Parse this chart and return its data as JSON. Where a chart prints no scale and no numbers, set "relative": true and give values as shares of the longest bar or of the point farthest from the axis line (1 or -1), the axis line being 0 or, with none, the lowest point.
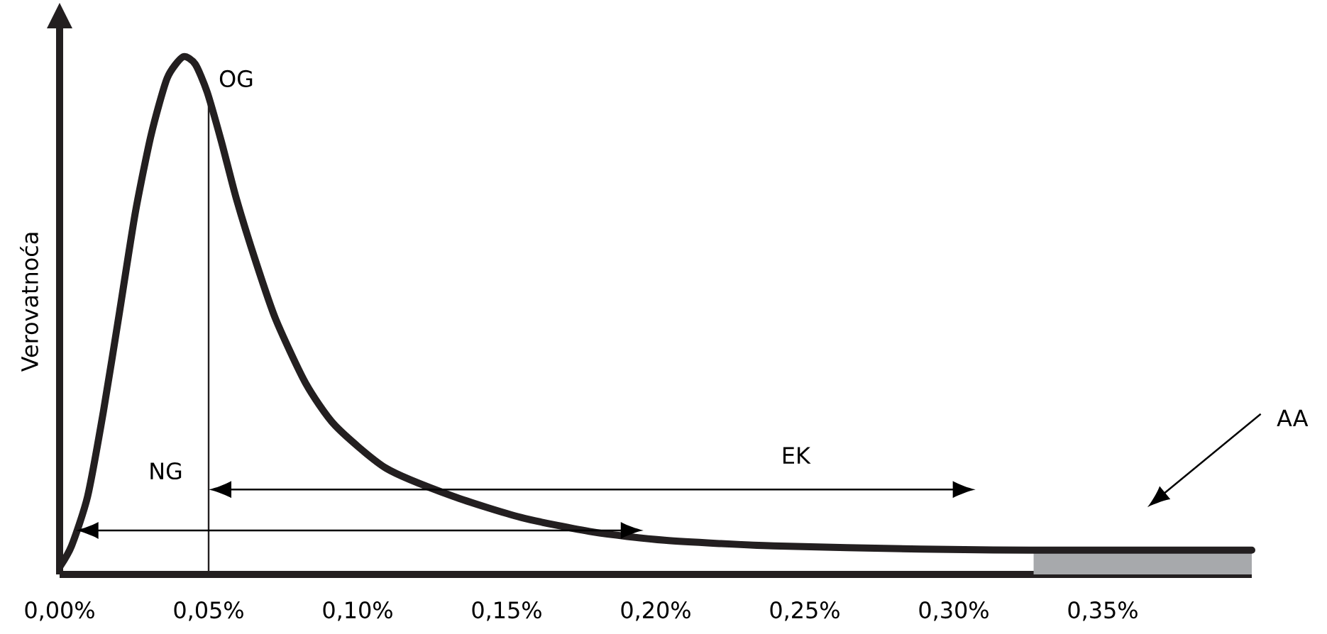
{
  "chart_data": {
    "type": "line",
    "relative": true,
    "ylabel": "Verovatnoća",
    "x": [
      0,
      0.004,
      0.0094,
      0.0147,
      0.0201,
      0.0254,
      0.0307,
      0.0361,
      0.0414,
      0.0455,
      0.0495,
      0.0543,
      0.0593,
      0.0659,
      0.0725,
      0.0825,
      0.0924,
      0.1096,
      0.132,
      0.1548,
      0.1789,
      0.203,
      0.2396,
      0.2889,
      0.3256,
      0.4
    ],
    "series": [
      {
        "color": "#231f20",
        "values": [
          0.014,
          0.055,
          0.151,
          0.315,
          0.507,
          0.699,
          0.849,
          0.959,
          1,
          0.986,
          0.932,
          0.836,
          0.726,
          0.603,
          0.493,
          0.37,
          0.288,
          0.205,
          0.151,
          0.11,
          0.082,
          0.066,
          0.055,
          0.049,
          0.047,
          0.047
        ]
      }
    ],
    "xlim": [
      0,
      0.4
    ],
    "xticks": [
      {
        "value": 0,
        "label": "0,00%"
      },
      {
        "value": 0.05,
        "label": "0,05%"
      },
      {
        "value": 0.1,
        "label": "0,10%"
      },
      {
        "value": 0.15,
        "label": "0,15%"
      },
      {
        "value": 0.2,
        "label": "0,20%"
      },
      {
        "value": 0.25,
        "label": "0,25%"
      },
      {
        "value": 0.3,
        "label": "0,30%"
      },
      {
        "value": 0.35,
        "label": "0,35%"
      }
    ],
    "ref_lines": [
      {
        "axis": "x",
        "value": 0.05,
        "label": "OG"
      }
    ],
    "bands": [
      {
        "axis": "x",
        "from": 0.3268,
        "to": 0.4,
        "color": "#a7a9ac"
      }
    ],
    "annotations": [
      "NG",
      "EK",
      "AA"
    ],
    "grid": false,
    "marker": "none",
    "line_style": "solid"
  }
}
